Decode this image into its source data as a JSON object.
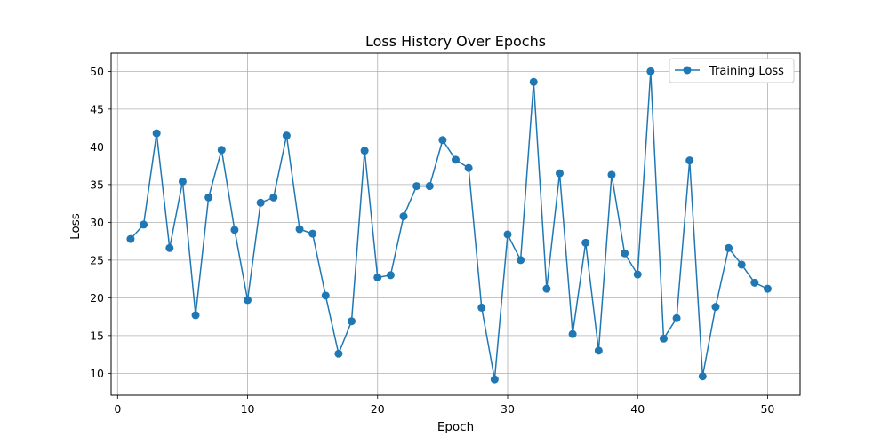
{
  "chart_data": {
    "type": "line",
    "title": "Loss History Over Epochs",
    "xlabel": "Epoch",
    "ylabel": "Loss",
    "xlim": [
      -0.5,
      52.5
    ],
    "ylim": [
      7.1,
      52.4
    ],
    "xticks": [
      "0",
      "10",
      "20",
      "30",
      "40",
      "50"
    ],
    "yticks": [
      "10",
      "15",
      "20",
      "25",
      "30",
      "35",
      "40",
      "45",
      "50"
    ],
    "grid": true,
    "legend_position": "top-right",
    "series": [
      {
        "name": "Training Loss",
        "color": "#1f77b4",
        "marker": "circle",
        "x": [
          1,
          2,
          3,
          4,
          5,
          6,
          7,
          8,
          9,
          10,
          11,
          12,
          13,
          14,
          15,
          16,
          17,
          18,
          19,
          20,
          21,
          22,
          23,
          24,
          25,
          26,
          27,
          28,
          29,
          30,
          31,
          32,
          33,
          34,
          35,
          36,
          37,
          38,
          39,
          40,
          41,
          42,
          43,
          44,
          45,
          46,
          47,
          48,
          49,
          50
        ],
        "y": [
          27.8,
          29.7,
          41.8,
          26.6,
          35.4,
          17.7,
          33.3,
          39.6,
          29.0,
          19.7,
          32.6,
          33.3,
          41.5,
          29.1,
          28.5,
          20.3,
          12.6,
          16.9,
          39.5,
          22.7,
          23.0,
          30.8,
          34.8,
          34.8,
          40.9,
          38.3,
          37.2,
          18.7,
          9.2,
          28.4,
          25.0,
          48.6,
          21.2,
          36.5,
          15.2,
          27.3,
          13.0,
          36.3,
          25.9,
          23.1,
          50.0,
          14.6,
          17.3,
          38.2,
          9.6,
          18.8,
          26.6,
          24.4,
          22.0,
          21.2
        ]
      }
    ]
  }
}
